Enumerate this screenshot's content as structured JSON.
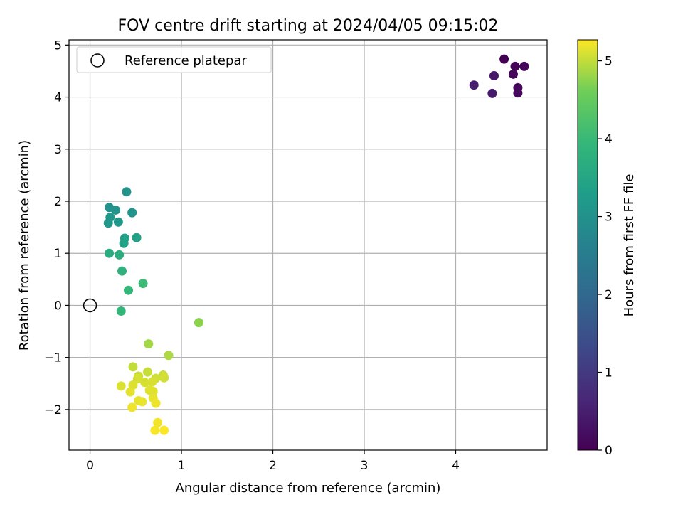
{
  "chart_data": {
    "type": "scatter",
    "title": "FOV centre drift starting at 2024/04/05 09:15:02",
    "xlabel": "Angular distance from reference (arcmin)",
    "ylabel": "Rotation from reference (arcmin)",
    "xlim": [
      -0.23,
      5.0
    ],
    "ylim": [
      -2.78,
      5.1
    ],
    "xticks": [
      0,
      1,
      2,
      3,
      4
    ],
    "yticks": [
      -2,
      -1,
      0,
      1,
      2,
      3,
      4,
      5
    ],
    "grid": true,
    "legend": {
      "placement": "upper-left",
      "entries": [
        "Reference platepar"
      ]
    },
    "reference_point": {
      "label": "Reference platepar",
      "x": 0,
      "y": 0
    },
    "colorbar": {
      "label": "Hours from first FF file",
      "range": [
        0,
        5.27
      ],
      "ticks": [
        0,
        1,
        2,
        3,
        4,
        5
      ],
      "colormap": "viridis"
    },
    "points": [
      {
        "x": 4.53,
        "y": 4.73,
        "hours": 0.0
      },
      {
        "x": 4.65,
        "y": 4.59,
        "hours": 0.05
      },
      {
        "x": 4.75,
        "y": 4.59,
        "hours": 0.08
      },
      {
        "x": 4.63,
        "y": 4.44,
        "hours": 0.1
      },
      {
        "x": 4.68,
        "y": 4.18,
        "hours": 0.12
      },
      {
        "x": 4.68,
        "y": 4.08,
        "hours": 0.15
      },
      {
        "x": 4.42,
        "y": 4.41,
        "hours": 0.35
      },
      {
        "x": 4.4,
        "y": 4.07,
        "hours": 0.4
      },
      {
        "x": 4.2,
        "y": 4.23,
        "hours": 0.5
      },
      {
        "x": 0.4,
        "y": 2.18,
        "hours": 3.0
      },
      {
        "x": 0.21,
        "y": 1.88,
        "hours": 3.02
      },
      {
        "x": 0.28,
        "y": 1.83,
        "hours": 3.05
      },
      {
        "x": 0.46,
        "y": 1.78,
        "hours": 3.08
      },
      {
        "x": 0.22,
        "y": 1.69,
        "hours": 3.1
      },
      {
        "x": 0.31,
        "y": 1.6,
        "hours": 3.12
      },
      {
        "x": 0.2,
        "y": 1.58,
        "hours": 3.15
      },
      {
        "x": 0.38,
        "y": 1.29,
        "hours": 3.35
      },
      {
        "x": 0.51,
        "y": 1.3,
        "hours": 3.38
      },
      {
        "x": 0.37,
        "y": 1.19,
        "hours": 3.42
      },
      {
        "x": 0.21,
        "y": 1.0,
        "hours": 3.65
      },
      {
        "x": 0.32,
        "y": 0.97,
        "hours": 3.68
      },
      {
        "x": 0.35,
        "y": 0.66,
        "hours": 3.8
      },
      {
        "x": 0.42,
        "y": 0.29,
        "hours": 3.95
      },
      {
        "x": 0.58,
        "y": 0.42,
        "hours": 4.05
      },
      {
        "x": 0.34,
        "y": -0.11,
        "hours": 3.9
      },
      {
        "x": 1.19,
        "y": -0.33,
        "hours": 4.75
      },
      {
        "x": 0.64,
        "y": -0.74,
        "hours": 4.85
      },
      {
        "x": 0.86,
        "y": -0.96,
        "hours": 4.9
      },
      {
        "x": 0.47,
        "y": -1.18,
        "hours": 5.0
      },
      {
        "x": 0.63,
        "y": -1.28,
        "hours": 5.02
      },
      {
        "x": 0.8,
        "y": -1.34,
        "hours": 5.04
      },
      {
        "x": 0.53,
        "y": -1.36,
        "hours": 5.05
      },
      {
        "x": 0.72,
        "y": -1.4,
        "hours": 5.06
      },
      {
        "x": 0.81,
        "y": -1.39,
        "hours": 5.07
      },
      {
        "x": 0.52,
        "y": -1.41,
        "hours": 5.08
      },
      {
        "x": 0.6,
        "y": -1.48,
        "hours": 5.09
      },
      {
        "x": 0.68,
        "y": -1.47,
        "hours": 5.1
      },
      {
        "x": 0.34,
        "y": -1.55,
        "hours": 5.11
      },
      {
        "x": 0.47,
        "y": -1.53,
        "hours": 5.12
      },
      {
        "x": 0.65,
        "y": -1.63,
        "hours": 5.13
      },
      {
        "x": 0.69,
        "y": -1.65,
        "hours": 5.14
      },
      {
        "x": 0.44,
        "y": -1.66,
        "hours": 5.15
      },
      {
        "x": 0.69,
        "y": -1.78,
        "hours": 5.16
      },
      {
        "x": 0.53,
        "y": -1.83,
        "hours": 5.17
      },
      {
        "x": 0.57,
        "y": -1.85,
        "hours": 5.18
      },
      {
        "x": 0.72,
        "y": -1.88,
        "hours": 5.19
      },
      {
        "x": 0.46,
        "y": -1.96,
        "hours": 5.2
      },
      {
        "x": 0.74,
        "y": -2.25,
        "hours": 5.22
      },
      {
        "x": 0.71,
        "y": -2.4,
        "hours": 5.24
      },
      {
        "x": 0.81,
        "y": -2.4,
        "hours": 5.26
      }
    ]
  }
}
